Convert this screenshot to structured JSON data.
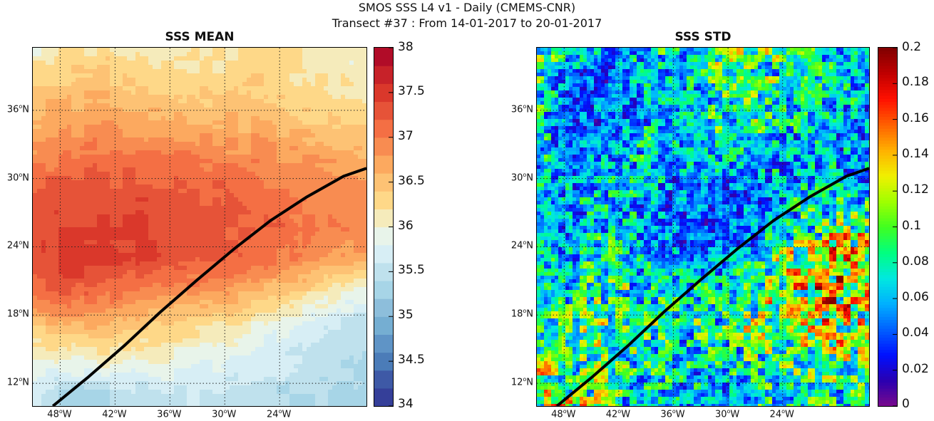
{
  "title_line1": "SMOS SSS L4 v1 - Daily (CMEMS-CNR)",
  "title_line2": "Transect #37 : From 14-01-2017 to 20-01-2017",
  "map_extent": {
    "lon_min": -51,
    "lon_max": -14.5,
    "lat_min": 10,
    "lat_max": 41.5
  },
  "lon_ticks": [
    {
      "value": -48,
      "deg": "48",
      "hemi": "W"
    },
    {
      "value": -42,
      "deg": "42",
      "hemi": "W"
    },
    {
      "value": -36,
      "deg": "36",
      "hemi": "W"
    },
    {
      "value": -30,
      "deg": "30",
      "hemi": "W"
    },
    {
      "value": -24,
      "deg": "24",
      "hemi": "W"
    }
  ],
  "lat_ticks": [
    {
      "value": 36,
      "deg": "36",
      "hemi": "N"
    },
    {
      "value": 30,
      "deg": "30",
      "hemi": "N"
    },
    {
      "value": 24,
      "deg": "24",
      "hemi": "N"
    },
    {
      "value": 18,
      "deg": "18",
      "hemi": "N"
    },
    {
      "value": 12,
      "deg": "12",
      "hemi": "N"
    }
  ],
  "transect": [
    {
      "lon": -48.8,
      "lat": 10.0
    },
    {
      "lon": -45.0,
      "lat": 12.5
    },
    {
      "lon": -41.0,
      "lat": 15.3
    },
    {
      "lon": -37.0,
      "lat": 18.3
    },
    {
      "lon": -33.0,
      "lat": 21.1
    },
    {
      "lon": -29.0,
      "lat": 23.8
    },
    {
      "lon": -25.0,
      "lat": 26.3
    },
    {
      "lon": -21.0,
      "lat": 28.4
    },
    {
      "lon": -17.0,
      "lat": 30.2
    },
    {
      "lon": -14.5,
      "lat": 30.9
    }
  ],
  "panels": [
    {
      "title": "SSS MEAN",
      "colorbar": {
        "min": 34,
        "max": 38,
        "ticks": [
          {
            "value": 34,
            "label": "34"
          },
          {
            "value": 34.5,
            "label": "34.5"
          },
          {
            "value": 35,
            "label": "35"
          },
          {
            "value": 35.5,
            "label": "35.5"
          },
          {
            "value": 36,
            "label": "36"
          },
          {
            "value": 36.5,
            "label": "36.5"
          },
          {
            "value": 37,
            "label": "37"
          },
          {
            "value": 37.5,
            "label": "37.5"
          },
          {
            "value": 38,
            "label": "38"
          }
        ],
        "colors": [
          "#313695",
          "#3a4a9e",
          "#4575b4",
          "#5b8fc4",
          "#74add1",
          "#8ebfdc",
          "#abd9e9",
          "#c6e4ee",
          "#e0f3f8",
          "#eef4df",
          "#fee090",
          "#fdc97a",
          "#fdae61",
          "#f88e52",
          "#f46d43",
          "#e34e36",
          "#d73027",
          "#bf1a2a",
          "#a50026"
        ],
        "levels": 20
      },
      "field": [
        {
          "lat": 41,
          "values": [
            36.0,
            36.2,
            36.3,
            36.2,
            36.1,
            36.2,
            36.3,
            36.2,
            36.1,
            36.0
          ]
        },
        {
          "lat": 38,
          "values": [
            36.4,
            36.5,
            36.5,
            36.4,
            36.4,
            36.3,
            36.4,
            36.3,
            36.2,
            36.1
          ]
        },
        {
          "lat": 35,
          "values": [
            36.6,
            36.7,
            36.8,
            36.7,
            36.6,
            36.6,
            36.6,
            36.5,
            36.4,
            36.3
          ]
        },
        {
          "lat": 32,
          "values": [
            36.9,
            37.0,
            37.1,
            37.0,
            37.0,
            36.9,
            36.9,
            36.8,
            36.7,
            36.6
          ]
        },
        {
          "lat": 29,
          "values": [
            37.2,
            37.3,
            37.3,
            37.3,
            37.2,
            37.2,
            37.1,
            37.0,
            36.9,
            36.8
          ]
        },
        {
          "lat": 26,
          "values": [
            37.3,
            37.4,
            37.4,
            37.4,
            37.3,
            37.3,
            37.2,
            37.1,
            37.0,
            36.9
          ]
        },
        {
          "lat": 23,
          "values": [
            37.3,
            37.5,
            37.5,
            37.4,
            37.3,
            37.2,
            37.1,
            37.0,
            36.8,
            36.7
          ]
        },
        {
          "lat": 20,
          "values": [
            37.1,
            37.2,
            37.1,
            37.0,
            36.9,
            36.8,
            36.6,
            36.4,
            36.1,
            35.9
          ]
        },
        {
          "lat": 17,
          "values": [
            36.4,
            36.6,
            36.6,
            36.4,
            36.3,
            36.2,
            36.0,
            35.8,
            35.6,
            35.5
          ]
        },
        {
          "lat": 14,
          "values": [
            35.9,
            36.0,
            36.1,
            36.0,
            35.9,
            35.8,
            35.7,
            35.6,
            35.5,
            35.4
          ]
        },
        {
          "lat": 11,
          "values": [
            35.6,
            35.3,
            35.4,
            35.5,
            35.6,
            35.6,
            35.5,
            35.4,
            35.4,
            35.3
          ]
        }
      ]
    },
    {
      "title": "SSS STD",
      "colorbar": {
        "min": 0,
        "max": 0.2,
        "ticks": [
          {
            "value": 0,
            "label": "0"
          },
          {
            "value": 0.02,
            "label": "0.02"
          },
          {
            "value": 0.04,
            "label": "0.04"
          },
          {
            "value": 0.06,
            "label": "0.06"
          },
          {
            "value": 0.08,
            "label": "0.08"
          },
          {
            "value": 0.1,
            "label": "0.1"
          },
          {
            "value": 0.12,
            "label": "0.12"
          },
          {
            "value": 0.14,
            "label": "0.14"
          },
          {
            "value": 0.16,
            "label": "0.16"
          },
          {
            "value": 0.18,
            "label": "0.18"
          },
          {
            "value": 0.2,
            "label": "0.2"
          }
        ],
        "colors": [
          "#7a0a8c",
          "#2a00b0",
          "#0010ff",
          "#0060ff",
          "#00b0ff",
          "#00e8e0",
          "#00ff80",
          "#40ff20",
          "#a0ff00",
          "#f0f000",
          "#ffb000",
          "#ff6000",
          "#ff1000",
          "#c00000",
          "#800000"
        ],
        "levels": 64
      },
      "field": [
        {
          "lat": 41,
          "values": [
            0.1,
            0.06,
            0.05,
            0.07,
            0.08,
            0.09,
            0.1,
            0.08,
            0.07,
            0.06
          ]
        },
        {
          "lat": 38,
          "values": [
            0.08,
            0.04,
            0.04,
            0.06,
            0.07,
            0.08,
            0.09,
            0.07,
            0.07,
            0.06
          ]
        },
        {
          "lat": 35,
          "values": [
            0.07,
            0.04,
            0.05,
            0.06,
            0.06,
            0.08,
            0.08,
            0.07,
            0.06,
            0.06
          ]
        },
        {
          "lat": 32,
          "values": [
            0.07,
            0.05,
            0.06,
            0.07,
            0.06,
            0.07,
            0.07,
            0.06,
            0.06,
            0.05
          ]
        },
        {
          "lat": 29,
          "values": [
            0.06,
            0.06,
            0.07,
            0.06,
            0.05,
            0.04,
            0.05,
            0.06,
            0.07,
            0.06
          ]
        },
        {
          "lat": 26,
          "values": [
            0.05,
            0.06,
            0.07,
            0.05,
            0.04,
            0.04,
            0.05,
            0.08,
            0.1,
            0.1
          ]
        },
        {
          "lat": 23,
          "values": [
            0.06,
            0.07,
            0.08,
            0.06,
            0.05,
            0.05,
            0.07,
            0.11,
            0.13,
            0.12
          ]
        },
        {
          "lat": 20,
          "values": [
            0.07,
            0.08,
            0.09,
            0.08,
            0.07,
            0.07,
            0.09,
            0.12,
            0.13,
            0.12
          ]
        },
        {
          "lat": 17,
          "values": [
            0.08,
            0.09,
            0.1,
            0.09,
            0.08,
            0.08,
            0.1,
            0.11,
            0.12,
            0.11
          ]
        },
        {
          "lat": 14,
          "values": [
            0.09,
            0.08,
            0.09,
            0.08,
            0.07,
            0.07,
            0.08,
            0.09,
            0.1,
            0.09
          ]
        },
        {
          "lat": 11,
          "values": [
            0.12,
            0.11,
            0.09,
            0.07,
            0.06,
            0.06,
            0.07,
            0.08,
            0.08,
            0.08
          ]
        }
      ]
    }
  ]
}
